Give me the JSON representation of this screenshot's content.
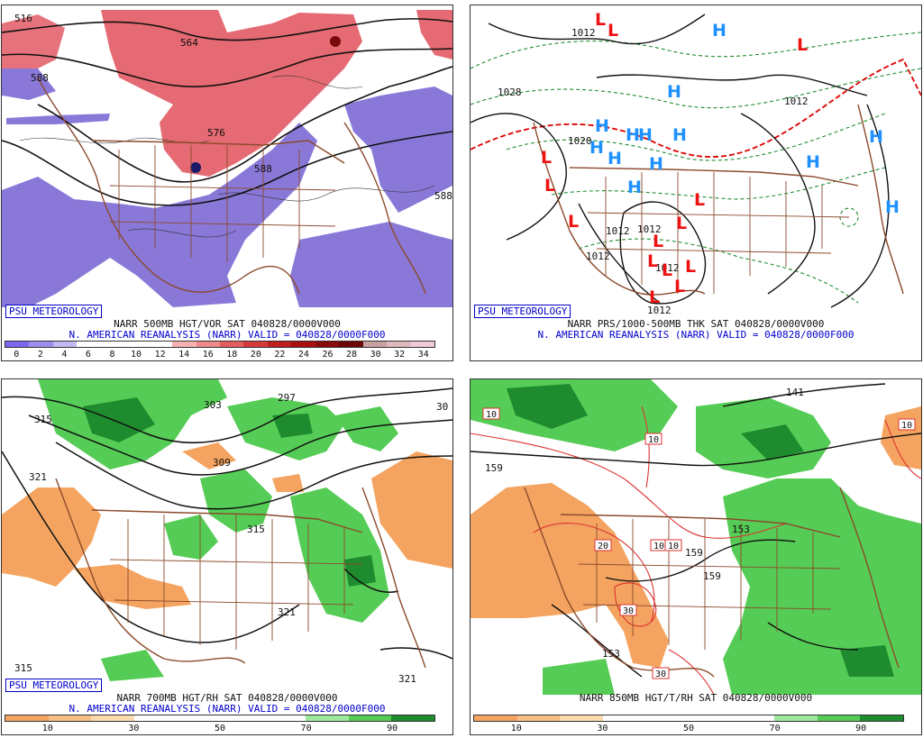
{
  "colors": {
    "vort_red": "#e0505a",
    "vort_pink": "#f5a0a8",
    "vort_purple": "#8a78d8",
    "map_brown": "#8b4a2b",
    "green_light": "#55cc55",
    "green_dark": "#1e8c2e",
    "orange": "#f4a460",
    "label_blue": "#0000cc",
    "h_blue": "#1e90ff",
    "l_red": "#ee1111"
  },
  "panels": [
    {
      "badge": "PSU METEOROLOGY",
      "line1": "NARR 500MB HGT/VOR SAT 040828/0000V000",
      "line2": "N. AMERICAN REANALYSIS (NARR) VALID = 040828/0000F000",
      "colorbar": {
        "colors": [
          "#7b68ee",
          "#9d8ff0",
          "#c4b9f5",
          "#ffffff",
          "#ffffff",
          "#ffffff",
          "#ffffff",
          "#f6b2b2",
          "#ef8a8a",
          "#e45c5c",
          "#d53a3a",
          "#c01f1f",
          "#a81010",
          "#8a0a0a",
          "#6e0505",
          "#c9a0a0",
          "#e0b8c0",
          "#f2cad4"
        ],
        "ticks": [
          "0",
          "2",
          "4",
          "6",
          "8",
          "10",
          "12",
          "14",
          "16",
          "18",
          "20",
          "22",
          "24",
          "26",
          "28",
          "30",
          "32",
          "34"
        ]
      },
      "contour_labels": [
        "516",
        "564",
        "576",
        "588",
        "588",
        "588"
      ]
    },
    {
      "badge": "PSU METEOROLOGY",
      "line1": "NARR PRS/1000-500MB THK SAT 040828/0000V000",
      "line2": "N. AMERICAN REANALYSIS (NARR) VALID = 040828/0000F000",
      "contour_labels": [
        "1012",
        "1028",
        "1020",
        "1012",
        "1012",
        "1012",
        "1012",
        "1012",
        "1012"
      ],
      "highs": [
        "H",
        "H",
        "H",
        "H",
        "H",
        "H",
        "H",
        "H",
        "H",
        "H",
        "H",
        "H",
        "H"
      ],
      "lows": [
        "L",
        "L",
        "L",
        "L",
        "L",
        "L",
        "L",
        "L",
        "L",
        "L",
        "L",
        "L",
        "L",
        "L"
      ]
    },
    {
      "badge": "PSU METEOROLOGY",
      "line1": "NARR 700MB HGT/RH SAT 040828/0000V000",
      "line2": "N. AMERICAN REANALYSIS (NARR) VALID = 040828/0000F000",
      "colorbar": {
        "colors": [
          "#f4a460",
          "#f7bf85",
          "#fbdab0",
          "#ffffff",
          "#ffffff",
          "#ffffff",
          "#ffffff",
          "#9ee89e",
          "#55cc55",
          "#1e8c2e"
        ],
        "ticks": [
          "10",
          "30",
          "50",
          "70",
          "90"
        ]
      },
      "contour_labels": [
        "315",
        "303",
        "297",
        "30",
        "321",
        "309",
        "315",
        "321",
        "315",
        "321"
      ]
    },
    {
      "line1": "NARR 850MB HGT/T/RH SAT 040828/0000V000",
      "colorbar": {
        "colors": [
          "#f4a460",
          "#f7bf85",
          "#fbdab0",
          "#ffffff",
          "#ffffff",
          "#ffffff",
          "#ffffff",
          "#9ee89e",
          "#55cc55",
          "#1e8c2e"
        ],
        "ticks": [
          "10",
          "30",
          "50",
          "70",
          "90"
        ]
      },
      "contour_labels": [
        "159",
        "141",
        "159",
        "153",
        "159",
        "153"
      ],
      "temp_labels": [
        "10",
        "10",
        "10",
        "10",
        "20",
        "10",
        "30",
        "30"
      ]
    }
  ]
}
